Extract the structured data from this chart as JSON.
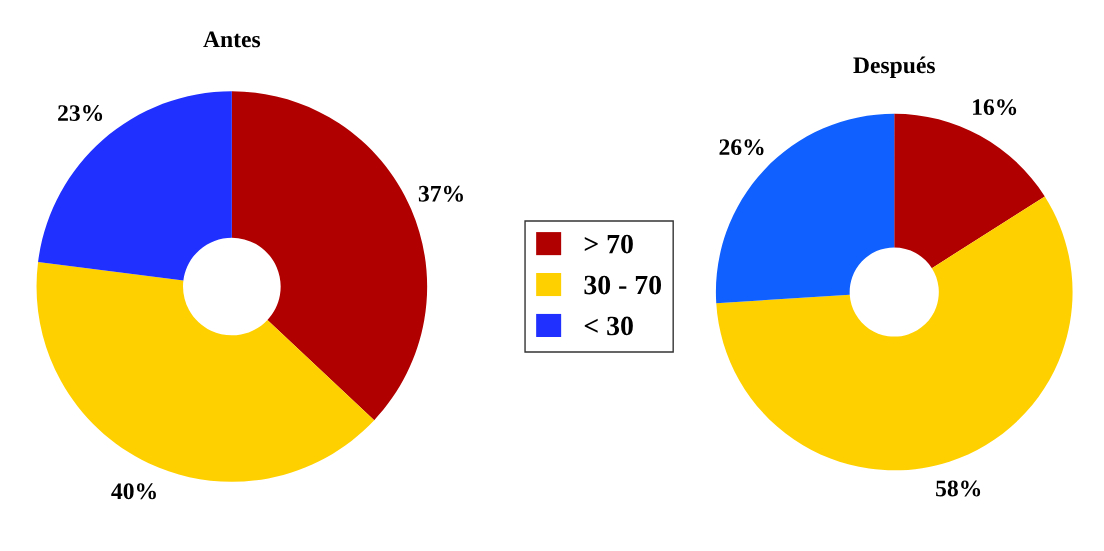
{
  "chart_data": [
    {
      "type": "donut",
      "title": "Antes",
      "categories": [
        "> 70",
        "30 - 70",
        "< 30"
      ],
      "values": [
        37,
        40,
        23
      ],
      "value_labels": [
        "37%",
        "40%",
        "23%"
      ],
      "colors": [
        "#b00000",
        "#ffd000",
        "#2030ff"
      ],
      "legend": "right"
    },
    {
      "type": "donut",
      "title": "Después",
      "categories": [
        null,
        null,
        null
      ],
      "values": [
        16,
        58,
        26
      ],
      "value_labels": [
        "16%",
        "58%",
        "26%"
      ],
      "colors": [
        "#b00000",
        "#ffd000",
        "#1060ff"
      ]
    }
  ]
}
